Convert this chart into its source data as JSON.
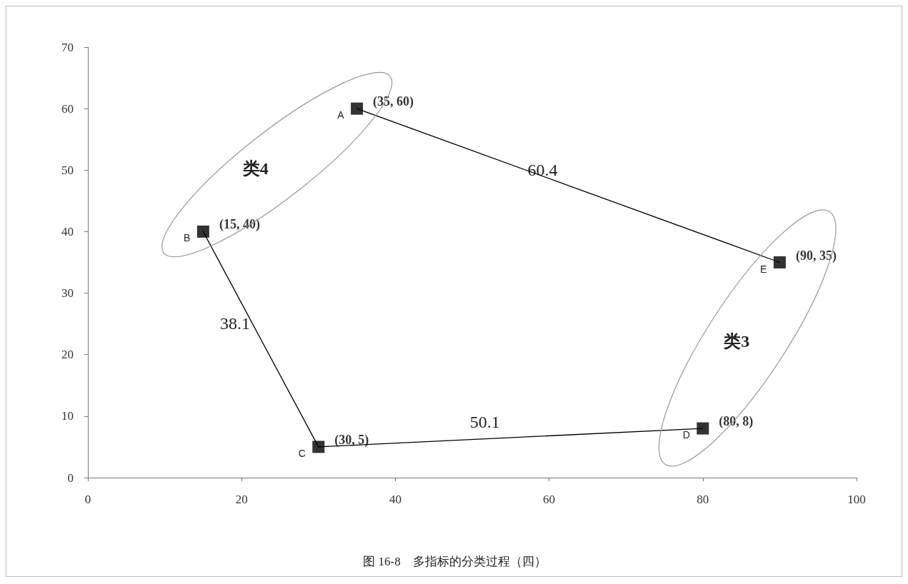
{
  "chart_data": {
    "type": "scatter",
    "x": [
      35,
      15,
      30,
      80,
      90
    ],
    "values": [
      60,
      40,
      5,
      8,
      35
    ],
    "color": "#000000",
    "marker": "square",
    "value_labels": [
      "(35, 60)",
      "(15, 40)",
      "(30, 5)",
      "(80, 8)",
      "(90, 35)"
    ],
    "series": [
      {
        "type": "line",
        "x": [
          35,
          90
        ],
        "values": [
          60,
          35
        ],
        "color": "#000000",
        "marker": "none",
        "line_style": "solid"
      },
      {
        "type": "line",
        "x": [
          15,
          30
        ],
        "values": [
          40,
          5
        ],
        "color": "#000000",
        "marker": "none",
        "line_style": "solid"
      },
      {
        "type": "line",
        "x": [
          30,
          80
        ],
        "values": [
          5,
          8
        ],
        "color": "#000000",
        "marker": "none",
        "line_style": "solid"
      }
    ],
    "xlim": [
      0,
      100
    ],
    "xticks": [
      0,
      20,
      40,
      60,
      80,
      100
    ],
    "ylim": [
      0,
      70
    ],
    "yticks": [
      0,
      10,
      20,
      30,
      40,
      50,
      60,
      70
    ],
    "grid": false,
    "annotations": [
      {
        "text": "A",
        "x": 35,
        "y": 60
      },
      {
        "text": "B",
        "x": 15,
        "y": 40
      },
      {
        "text": "C",
        "x": 30,
        "y": 5
      },
      {
        "text": "D",
        "x": 80,
        "y": 8
      },
      {
        "text": "E",
        "x": 90,
        "y": 35
      },
      {
        "text": "60.4",
        "x": 62.5,
        "y": 47.5
      },
      {
        "text": "38.1",
        "x": 22.5,
        "y": 22.5
      },
      {
        "text": "50.1",
        "x": 55,
        "y": 6.5
      },
      "类4",
      "类3",
      "图 16-8　多指标的分类过程（四）"
    ]
  }
}
